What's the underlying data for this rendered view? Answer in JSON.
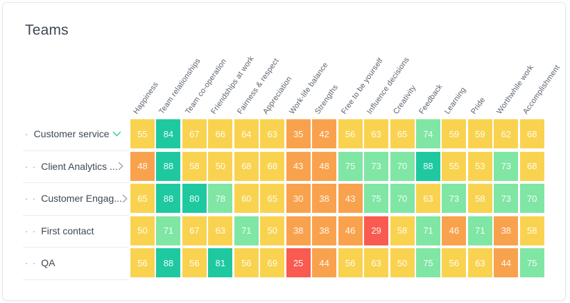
{
  "chart_data": {
    "type": "heatmap",
    "title": "Teams",
    "columns": [
      "Happiness",
      "Team relationships",
      "Team co-operation",
      "Friendships at work",
      "Fairness & respect",
      "Appreciation",
      "Work-life balance",
      "Strengths",
      "Free to be yourself",
      "Influence decisions",
      "Creativity",
      "Feedback",
      "Learning",
      "Pride",
      "Worthwhile work",
      "Accomplishment"
    ],
    "rows": [
      {
        "label": "Customer service",
        "prefix": "·",
        "expander": "collapse",
        "values": [
          55,
          84,
          67,
          66,
          64,
          63,
          35,
          42,
          56,
          63,
          65,
          74,
          59,
          59,
          62,
          68
        ]
      },
      {
        "label": "Client Analytics ...",
        "prefix": "· ·",
        "expander": "expand",
        "values": [
          48,
          88,
          58,
          50,
          68,
          68,
          43,
          48,
          75,
          73,
          70,
          88,
          55,
          53,
          73,
          68
        ]
      },
      {
        "label": "Customer Engag...",
        "prefix": "· ·",
        "expander": "expand",
        "values": [
          65,
          88,
          80,
          78,
          60,
          65,
          30,
          38,
          43,
          75,
          70,
          63,
          73,
          58,
          73,
          70
        ]
      },
      {
        "label": "First contact",
        "prefix": "· ·",
        "expander": "none",
        "values": [
          50,
          71,
          67,
          63,
          71,
          50,
          38,
          38,
          46,
          29,
          58,
          71,
          46,
          71,
          38,
          58
        ]
      },
      {
        "label": "QA",
        "prefix": "· ·",
        "expander": "none",
        "values": [
          56,
          88,
          56,
          81,
          56,
          69,
          25,
          44,
          56,
          63,
          50,
          75,
          56,
          63,
          44,
          75
        ]
      }
    ],
    "color_scale": {
      "green": {
        "hex": "#1ec9a0",
        "range": "80-100"
      },
      "light_green": {
        "hex": "#7fe6a4",
        "range": "70-79"
      },
      "yellow": {
        "hex": "#f9d350",
        "range": "50-69"
      },
      "orange": {
        "hex": "#f9a24e",
        "range": "30-49"
      },
      "red": {
        "hex": "#f95b50",
        "range": "0-29"
      }
    },
    "legend_position": "none",
    "grid": false
  },
  "icons": {
    "chevron_down_color": "#3ed3a3",
    "chevron_right_color": "#9aa3b0"
  }
}
